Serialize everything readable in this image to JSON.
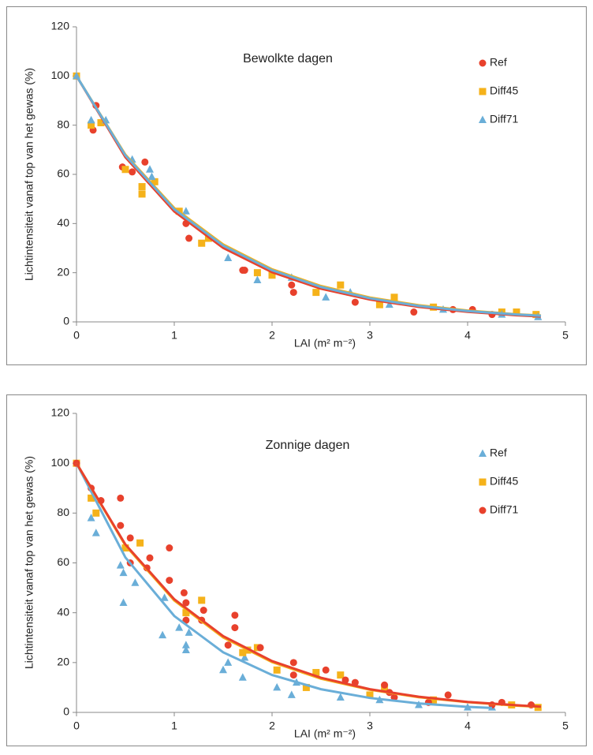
{
  "chart_data": [
    {
      "type": "scatter",
      "annotation": "Bewolkte dagen",
      "x_label": "LAI (m² m⁻²)",
      "y_label": "Lichtintensiteit vanaf top van het gewas (%)",
      "xlim": [
        0,
        5
      ],
      "ylim": [
        0,
        120
      ],
      "xticks": [
        0,
        1,
        2,
        3,
        4,
        5
      ],
      "yticks": [
        0,
        20,
        40,
        60,
        80,
        100,
        120
      ],
      "grid": false,
      "legend": "right",
      "series": [
        {
          "name": "Ref",
          "color": "#e8412c",
          "marker": "circle",
          "x": [
            0,
            0.17,
            0.2,
            0.47,
            0.57,
            0.7,
            1.15,
            1.12,
            1.7,
            1.72,
            2.22,
            2.2,
            2.85,
            3.45,
            3.85,
            4.05,
            4.25
          ],
          "values": [
            100,
            78,
            88,
            63,
            61,
            65,
            34,
            40,
            21,
            21,
            12,
            15,
            8,
            4,
            5,
            5,
            3
          ],
          "trend": {
            "x": [
              0,
              0.5,
              1,
              1.5,
              2,
              2.5,
              3,
              3.5,
              4,
              4.5,
              4.75
            ],
            "values": [
              100,
              67.0,
              44.9,
              30.1,
              20.2,
              13.5,
              9.1,
              6.1,
              4.1,
              2.7,
              2.2
            ]
          }
        },
        {
          "name": "Diff45",
          "color": "#f5b21a",
          "marker": "square",
          "x": [
            0,
            0.15,
            0.25,
            0.5,
            0.67,
            0.67,
            0.8,
            1.05,
            1.28,
            1.35,
            1.85,
            2,
            2.45,
            2.7,
            3.1,
            3.25,
            3.65,
            4.35,
            4.5,
            4.7
          ],
          "values": [
            100,
            80,
            81,
            62,
            52,
            55,
            57,
            45,
            32,
            34,
            20,
            19,
            12,
            15,
            7,
            10,
            6,
            4,
            4,
            3
          ],
          "trend": {
            "x": [
              0,
              0.5,
              1,
              1.5,
              2,
              2.5,
              3,
              3.5,
              4,
              4.5,
              4.75
            ],
            "values": [
              100,
              68.0,
              46.3,
              31.5,
              21.4,
              14.6,
              9.9,
              6.8,
              4.6,
              3.1,
              2.6
            ]
          }
        },
        {
          "name": "Diff71",
          "color": "#6aaed8",
          "marker": "triangle",
          "x": [
            0,
            0.15,
            0.3,
            0.57,
            0.75,
            0.77,
            1.12,
            1.55,
            1.85,
            2.2,
            2.55,
            2.8,
            3.2,
            3.75,
            4.35,
            4.72
          ],
          "values": [
            100,
            82,
            82,
            66,
            62,
            59,
            45,
            26,
            17,
            18,
            10,
            12,
            7,
            5,
            3,
            2
          ],
          "trend": {
            "x": [
              0,
              0.5,
              1,
              1.5,
              2,
              2.5,
              3,
              3.5,
              4,
              4.5,
              4.75
            ],
            "values": [
              100,
              67.7,
              45.8,
              31.0,
              21.0,
              14.2,
              9.6,
              6.5,
              4.4,
              3.0,
              2.5
            ]
          }
        }
      ]
    },
    {
      "type": "scatter",
      "annotation": "Zonnige dagen",
      "x_label": "LAI (m² m⁻²)",
      "y_label": "Lichtintensiteit vanaf top van het gewas (%)",
      "xlim": [
        0,
        5
      ],
      "ylim": [
        0,
        120
      ],
      "xticks": [
        0,
        1,
        2,
        3,
        4,
        5
      ],
      "yticks": [
        0,
        20,
        40,
        60,
        80,
        100,
        120
      ],
      "grid": false,
      "legend": "right",
      "series": [
        {
          "name": "Ref",
          "color": "#6aaed8",
          "marker": "triangle",
          "x": [
            0,
            0.15,
            0.2,
            0.45,
            0.48,
            0.48,
            0.6,
            0.88,
            0.9,
            1.05,
            1.12,
            1.12,
            1.15,
            1.5,
            1.55,
            1.7,
            1.72,
            2.05,
            2.2,
            2.25,
            2.7,
            3.1,
            3.5,
            4.0,
            4.25
          ],
          "values": [
            100,
            78,
            72,
            59,
            44,
            56,
            52,
            31,
            46,
            34,
            27,
            25,
            32,
            17,
            20,
            14,
            22,
            10,
            7,
            12,
            6,
            5,
            3,
            2,
            2
          ],
          "trend": {
            "x": [
              0,
              0.5,
              1,
              1.5,
              2,
              2.5,
              3,
              3.5,
              4,
              4.25
            ],
            "values": [
              100,
              62.2,
              38.7,
              24.1,
              15.0,
              9.3,
              5.8,
              3.6,
              2.2,
              1.8
            ]
          }
        },
        {
          "name": "Diff45",
          "color": "#f5b21a",
          "marker": "square",
          "x": [
            0,
            0.15,
            0.2,
            0.5,
            0.65,
            1.12,
            1.28,
            1.7,
            1.75,
            1.85,
            2.05,
            2.35,
            2.45,
            2.7,
            3.0,
            3.15,
            3.65,
            4.45,
            4.72
          ],
          "values": [
            100,
            86,
            80,
            66,
            68,
            40,
            45,
            24,
            25,
            26,
            17,
            10,
            16,
            15,
            7,
            10,
            5,
            3,
            2
          ],
          "trend": {
            "x": [
              0,
              0.5,
              1,
              1.5,
              2,
              2.5,
              3,
              3.5,
              4,
              4.5,
              4.75
            ],
            "values": [
              100,
              67.0,
              44.9,
              30.1,
              20.2,
              13.5,
              9.1,
              6.1,
              4.1,
              2.7,
              2.2
            ]
          }
        },
        {
          "name": "Diff71",
          "color": "#e8412c",
          "marker": "circle",
          "x": [
            0,
            0.15,
            0.25,
            0.45,
            0.45,
            0.55,
            0.55,
            0.72,
            0.75,
            0.95,
            0.95,
            1.1,
            1.12,
            1.12,
            1.3,
            1.28,
            1.62,
            1.62,
            1.55,
            1.88,
            2.22,
            2.22,
            2.55,
            2.75,
            2.85,
            3.15,
            3.2,
            3.25,
            3.6,
            3.8,
            4.25,
            4.35,
            4.65
          ],
          "values": [
            100,
            90,
            85,
            86,
            75,
            70,
            60,
            58,
            62,
            66,
            53,
            48,
            44,
            37,
            41,
            37,
            39,
            34,
            27,
            26,
            20,
            15,
            17,
            13,
            12,
            11,
            8,
            6,
            4,
            7,
            3,
            4,
            3
          ],
          "trend": {
            "x": [
              0,
              0.5,
              1,
              1.5,
              2,
              2.5,
              3,
              3.5,
              4,
              4.5,
              4.75
            ],
            "values": [
              100,
              67.4,
              45.4,
              30.6,
              20.6,
              13.9,
              9.3,
              6.3,
              4.2,
              2.9,
              2.3
            ]
          }
        }
      ]
    }
  ]
}
